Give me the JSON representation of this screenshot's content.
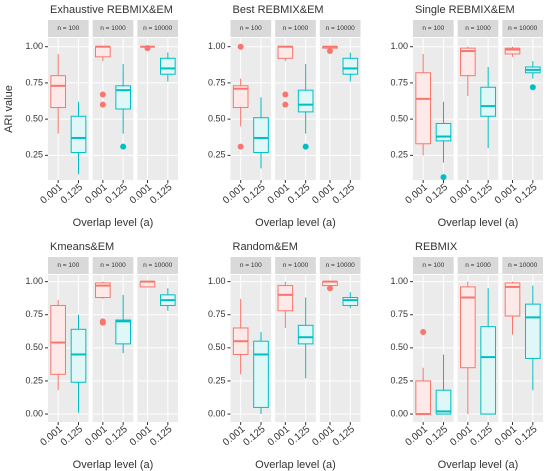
{
  "chart_data": [
    {
      "type": "boxplot",
      "title": "Exhaustive REBMIX&EM",
      "ylabel": "ARI value",
      "xlabel": "Overlap level (a)",
      "categories": [
        "0.001",
        "0.125"
      ],
      "colors": [
        "#F8766D",
        "#00BFC4"
      ],
      "fills": [
        "#fdeae8",
        "#e0f7f8"
      ],
      "ylim": [
        0.08,
        1.06
      ],
      "yticks": [
        0.25,
        {
          "value": 0.5,
          "label": "0.50"
        },
        0.75,
        {
          "value": 1,
          "label": "1.00"
        }
      ],
      "grid": true,
      "facets": [
        {
          "label": "n = 100",
          "boxes": [
            {
              "min": 0.4,
              "q1": 0.58,
              "median": 0.73,
              "q3": 0.8,
              "max": 0.95,
              "outliers": []
            },
            {
              "min": 0.12,
              "q1": 0.27,
              "median": 0.37,
              "q3": 0.52,
              "max": 0.62,
              "outliers": []
            }
          ]
        },
        {
          "label": "n = 1000",
          "boxes": [
            {
              "min": 0.9,
              "q1": 0.93,
              "median": 1.0,
              "q3": 1.0,
              "max": 1.0,
              "outliers": [
                0.67,
                0.6
              ]
            },
            {
              "min": 0.4,
              "q1": 0.57,
              "median": 0.7,
              "q3": 0.73,
              "max": 0.88,
              "outliers": [
                0.31
              ]
            }
          ]
        },
        {
          "label": "n = 10000",
          "boxes": [
            {
              "min": 0.99,
              "q1": 1.0,
              "median": 1.0,
              "q3": 1.0,
              "max": 1.0,
              "outliers": [
                0.99
              ]
            },
            {
              "min": 0.76,
              "q1": 0.81,
              "median": 0.85,
              "q3": 0.92,
              "max": 0.96,
              "outliers": []
            }
          ]
        }
      ]
    },
    {
      "type": "boxplot",
      "title": "Best REBMIX&EM",
      "xlabel": "Overlap level (a)",
      "categories": [
        "0.001",
        "0.125"
      ],
      "colors": [
        "#F8766D",
        "#00BFC4"
      ],
      "fills": [
        "#fdeae8",
        "#e0f7f8"
      ],
      "ylim": [
        0.08,
        1.06
      ],
      "yticks": [
        0.25,
        {
          "value": 0.5,
          "label": "0.50"
        },
        0.75,
        {
          "value": 1,
          "label": "1.00"
        }
      ],
      "grid": true,
      "facets": [
        {
          "label": "n = 100",
          "boxes": [
            {
              "min": 0.45,
              "q1": 0.58,
              "median": 0.71,
              "q3": 0.73,
              "max": 0.78,
              "outliers": [
                1.0,
                0.31
              ]
            },
            {
              "min": 0.16,
              "q1": 0.27,
              "median": 0.37,
              "q3": 0.51,
              "max": 0.65,
              "outliers": []
            }
          ]
        },
        {
          "label": "n = 1000",
          "boxes": [
            {
              "min": 0.9,
              "q1": 0.92,
              "median": 1.0,
              "q3": 1.0,
              "max": 1.0,
              "outliers": [
                0.67,
                0.6
              ]
            },
            {
              "min": 0.4,
              "q1": 0.55,
              "median": 0.6,
              "q3": 0.7,
              "max": 0.88,
              "outliers": [
                0.31
              ]
            }
          ]
        },
        {
          "label": "n = 10000",
          "boxes": [
            {
              "min": 0.98,
              "q1": 0.99,
              "median": 1.0,
              "q3": 1.0,
              "max": 1.0,
              "outliers": [
                0.97
              ]
            },
            {
              "min": 0.76,
              "q1": 0.81,
              "median": 0.85,
              "q3": 0.92,
              "max": 0.96,
              "outliers": []
            }
          ]
        }
      ]
    },
    {
      "type": "boxplot",
      "title": "Single REBMIX&EM",
      "xlabel": "Overlap level (a)",
      "categories": [
        "0.001",
        "0.125"
      ],
      "colors": [
        "#F8766D",
        "#00BFC4"
      ],
      "fills": [
        "#fdeae8",
        "#e0f7f8"
      ],
      "ylim": [
        0.08,
        1.06
      ],
      "yticks": [
        0.25,
        {
          "value": 0.5,
          "label": "0.50"
        },
        0.75,
        {
          "value": 1,
          "label": "1.00"
        }
      ],
      "grid": true,
      "facets": [
        {
          "label": "n = 100",
          "boxes": [
            {
              "min": 0.25,
              "q1": 0.33,
              "median": 0.64,
              "q3": 0.82,
              "max": 0.95,
              "outliers": []
            },
            {
              "min": 0.2,
              "q1": 0.35,
              "median": 0.38,
              "q3": 0.47,
              "max": 0.62,
              "outliers": [
                0.1
              ]
            }
          ]
        },
        {
          "label": "n = 1000",
          "boxes": [
            {
              "min": 0.66,
              "q1": 0.8,
              "median": 0.97,
              "q3": 0.99,
              "max": 1.0,
              "outliers": []
            },
            {
              "min": 0.3,
              "q1": 0.52,
              "median": 0.59,
              "q3": 0.72,
              "max": 0.86,
              "outliers": []
            }
          ]
        },
        {
          "label": "n = 10000",
          "boxes": [
            {
              "min": 0.93,
              "q1": 0.95,
              "median": 0.98,
              "q3": 0.99,
              "max": 1.0,
              "outliers": []
            },
            {
              "min": 0.78,
              "q1": 0.82,
              "median": 0.84,
              "q3": 0.86,
              "max": 0.9,
              "outliers": [
                0.72
              ]
            }
          ]
        }
      ]
    },
    {
      "type": "boxplot",
      "title": "Kmeans&EM",
      "xlabel": "Overlap level (a)",
      "categories": [
        "0.001",
        "0.125"
      ],
      "colors": [
        "#F8766D",
        "#00BFC4"
      ],
      "fills": [
        "#fdeae8",
        "#e0f7f8"
      ],
      "ylim": [
        -0.06,
        1.05
      ],
      "yticks": [
        {
          "value": 0,
          "label": "0.00"
        },
        0.25,
        {
          "value": 0.5,
          "label": "0.50"
        },
        0.75,
        {
          "value": 1,
          "label": "1.00"
        }
      ],
      "grid": true,
      "facets": [
        {
          "label": "n = 100",
          "boxes": [
            {
              "min": 0.18,
              "q1": 0.3,
              "median": 0.54,
              "q3": 0.82,
              "max": 0.86,
              "outliers": []
            },
            {
              "min": 0.01,
              "q1": 0.24,
              "median": 0.45,
              "q3": 0.64,
              "max": 0.75,
              "outliers": []
            }
          ]
        },
        {
          "label": "n = 1000",
          "boxes": [
            {
              "min": 0.87,
              "q1": 0.88,
              "median": 0.97,
              "q3": 0.99,
              "max": 1.0,
              "outliers": [
                0.7,
                0.69
              ]
            },
            {
              "min": 0.46,
              "q1": 0.53,
              "median": 0.7,
              "q3": 0.71,
              "max": 0.9,
              "outliers": []
            }
          ]
        },
        {
          "label": "n = 10000",
          "boxes": [
            {
              "min": 0.96,
              "q1": 0.96,
              "median": 1.0,
              "q3": 1.0,
              "max": 1.0,
              "outliers": []
            },
            {
              "min": 0.78,
              "q1": 0.82,
              "median": 0.86,
              "q3": 0.9,
              "max": 0.95,
              "outliers": []
            }
          ]
        }
      ]
    },
    {
      "type": "boxplot",
      "title": "Random&EM",
      "xlabel": "Overlap level (a)",
      "categories": [
        "0.001",
        "0.125"
      ],
      "colors": [
        "#F8766D",
        "#00BFC4"
      ],
      "fills": [
        "#fdeae8",
        "#e0f7f8"
      ],
      "ylim": [
        -0.06,
        1.05
      ],
      "yticks": [
        {
          "value": 0,
          "label": "0.00"
        },
        0.25,
        {
          "value": 0.5,
          "label": "0.50"
        },
        0.75,
        {
          "value": 1,
          "label": "1.00"
        }
      ],
      "grid": true,
      "facets": [
        {
          "label": "n = 100",
          "boxes": [
            {
              "min": 0.3,
              "q1": 0.45,
              "median": 0.55,
              "q3": 0.65,
              "max": 0.87,
              "outliers": []
            },
            {
              "min": 0.0,
              "q1": 0.05,
              "median": 0.45,
              "q3": 0.55,
              "max": 0.62,
              "outliers": []
            }
          ]
        },
        {
          "label": "n = 1000",
          "boxes": [
            {
              "min": 0.65,
              "q1": 0.78,
              "median": 0.9,
              "q3": 0.97,
              "max": 1.0,
              "outliers": []
            },
            {
              "min": 0.27,
              "q1": 0.53,
              "median": 0.58,
              "q3": 0.67,
              "max": 0.88,
              "outliers": []
            }
          ]
        },
        {
          "label": "n = 10000",
          "boxes": [
            {
              "min": 0.96,
              "q1": 0.97,
              "median": 1.0,
              "q3": 1.0,
              "max": 1.0,
              "outliers": [
                0.95
              ]
            },
            {
              "min": 0.8,
              "q1": 0.82,
              "median": 0.86,
              "q3": 0.88,
              "max": 0.92,
              "outliers": []
            }
          ]
        }
      ]
    },
    {
      "type": "boxplot",
      "title": "REBMIX",
      "xlabel": "Overlap level (a)",
      "categories": [
        "0.001",
        "0.125"
      ],
      "colors": [
        "#F8766D",
        "#00BFC4"
      ],
      "fills": [
        "#fdeae8",
        "#e0f7f8"
      ],
      "ylim": [
        -0.06,
        1.05
      ],
      "yticks": [
        {
          "value": 0,
          "label": "0.00"
        },
        0.25,
        {
          "value": 0.5,
          "label": "0.50"
        },
        0.75,
        {
          "value": 1,
          "label": "1.00"
        }
      ],
      "grid": true,
      "facets": [
        {
          "label": "n = 100",
          "boxes": [
            {
              "min": 0.0,
              "q1": 0.0,
              "median": 0.0,
              "q3": 0.25,
              "max": 0.35,
              "outliers": [
                0.62
              ]
            },
            {
              "min": 0.0,
              "q1": 0.0,
              "median": 0.02,
              "q3": 0.18,
              "max": 0.45,
              "outliers": []
            }
          ]
        },
        {
          "label": "n = 1000",
          "boxes": [
            {
              "min": 0.0,
              "q1": 0.35,
              "median": 0.88,
              "q3": 0.96,
              "max": 1.0,
              "outliers": []
            },
            {
              "min": 0.0,
              "q1": 0.0,
              "median": 0.43,
              "q3": 0.66,
              "max": 0.95,
              "outliers": []
            }
          ]
        },
        {
          "label": "n = 10000",
          "boxes": [
            {
              "min": 0.6,
              "q1": 0.74,
              "median": 0.96,
              "q3": 0.99,
              "max": 1.0,
              "outliers": []
            },
            {
              "min": 0.18,
              "q1": 0.42,
              "median": 0.73,
              "q3": 0.83,
              "max": 0.97,
              "outliers": []
            }
          ]
        }
      ]
    }
  ]
}
